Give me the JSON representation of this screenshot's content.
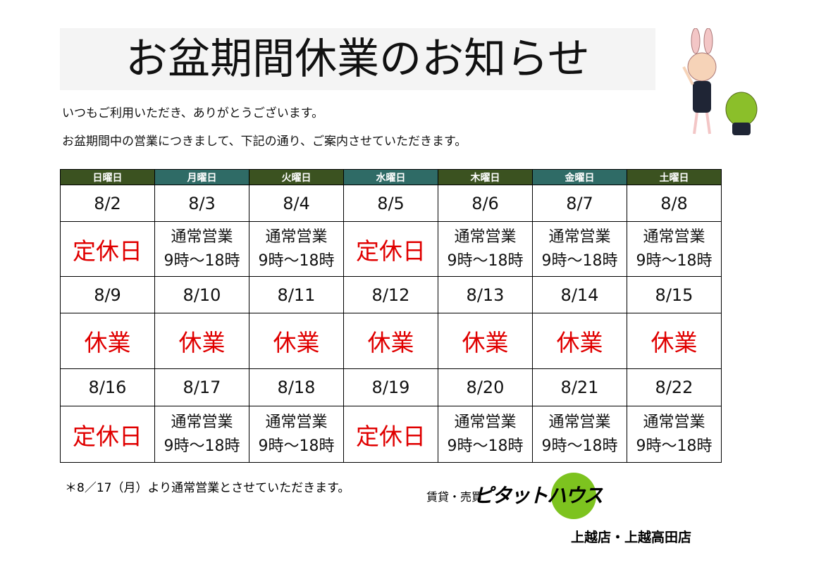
{
  "header": {
    "title": "お盆期間休業のお知らせ"
  },
  "intro": [
    "いつもご利用いただき、ありがとうございます。",
    "お盆期間中の営業につきまして、下記の通り、ご案内させていただきます。"
  ],
  "table": {
    "columns": [
      "日曜日",
      "月曜日",
      "火曜日",
      "水曜日",
      "木曜日",
      "金曜日",
      "土曜日"
    ],
    "rows": [
      [
        "8/2",
        "8/3",
        "8/4",
        "8/5",
        "8/6",
        "8/7",
        "8/8"
      ],
      [
        "定休日",
        [
          "通常営業",
          "9時～18時"
        ],
        [
          "通常営業",
          "9時～18時"
        ],
        "定休日",
        [
          "通常営業",
          "9時～18時"
        ],
        [
          "通常営業",
          "9時～18時"
        ],
        [
          "通常営業",
          "9時～18時"
        ]
      ],
      [
        "8/9",
        "8/10",
        "8/11",
        "8/12",
        "8/13",
        "8/14",
        "8/15"
      ],
      [
        "休業",
        "休業",
        "休業",
        "休業",
        "休業",
        "休業",
        "休業"
      ],
      [
        "8/16",
        "8/17",
        "8/18",
        "8/19",
        "8/20",
        "8/21",
        "8/22"
      ],
      [
        "定休日",
        [
          "通常営業",
          "9時～18時"
        ],
        [
          "通常営業",
          "9時～18時"
        ],
        "定休日",
        [
          "通常営業",
          "9時～18時"
        ],
        [
          "通常営業",
          "9時～18時"
        ],
        [
          "通常営業",
          "9時～18時"
        ]
      ]
    ]
  },
  "note": "＊8／17（月）より通常営業とさせていただきます。",
  "logo": {
    "tagline": "賃貸・売買",
    "brand": "ピタットハウス"
  },
  "stores": "上越店・上越高田店"
}
